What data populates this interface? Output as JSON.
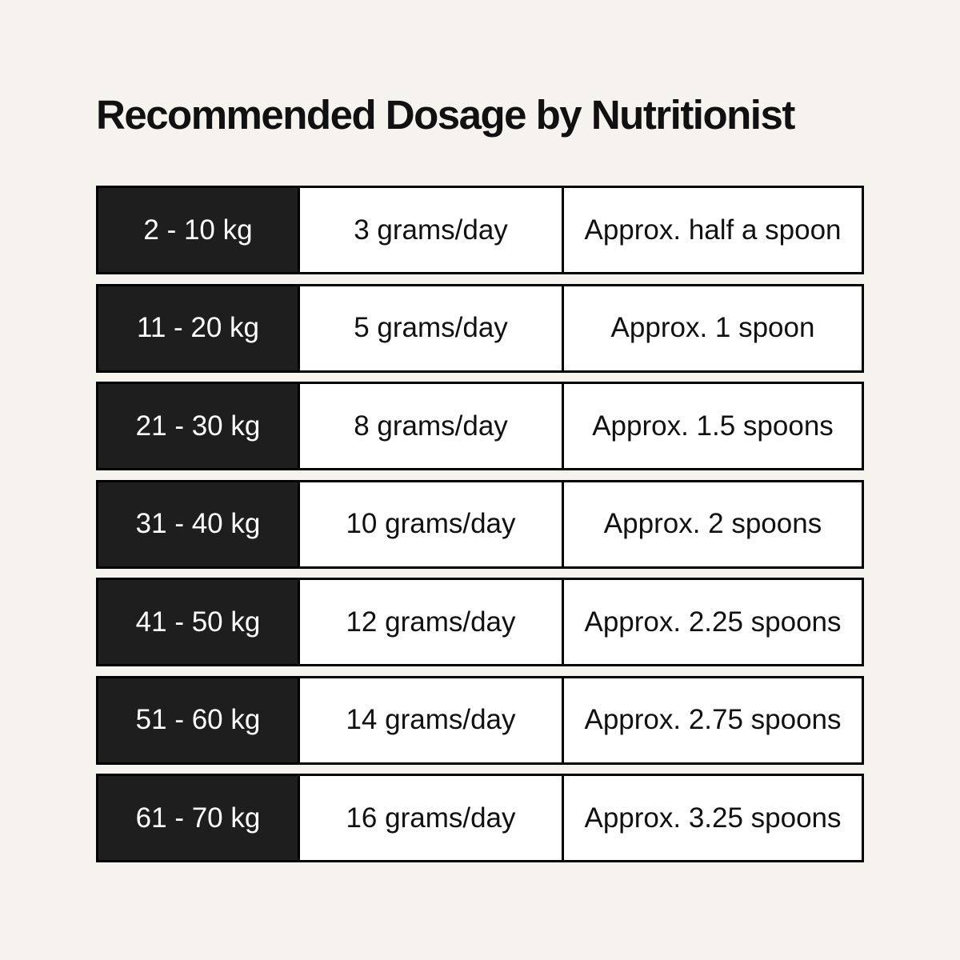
{
  "title": "Recommended Dosage by Nutritionist",
  "rows": [
    {
      "weight": "2 - 10 kg",
      "dose": "3 grams/day",
      "spoons": "Approx. half a spoon"
    },
    {
      "weight": "11 - 20 kg",
      "dose": "5 grams/day",
      "spoons": "Approx. 1 spoon"
    },
    {
      "weight": "21 - 30 kg",
      "dose": "8 grams/day",
      "spoons": "Approx. 1.5 spoons"
    },
    {
      "weight": "31 - 40 kg",
      "dose": "10 grams/day",
      "spoons": "Approx. 2 spoons"
    },
    {
      "weight": "41 - 50 kg",
      "dose": "12 grams/day",
      "spoons": "Approx. 2.25 spoons"
    },
    {
      "weight": "51 - 60 kg",
      "dose": "14 grams/day",
      "spoons": "Approx. 2.75 spoons"
    },
    {
      "weight": "61 - 70 kg",
      "dose": "16 grams/day",
      "spoons": "Approx. 3.25 spoons"
    }
  ],
  "colors": {
    "background": "#f6f3ee",
    "weight_cell": "#1e1e1e",
    "border": "#000000"
  }
}
